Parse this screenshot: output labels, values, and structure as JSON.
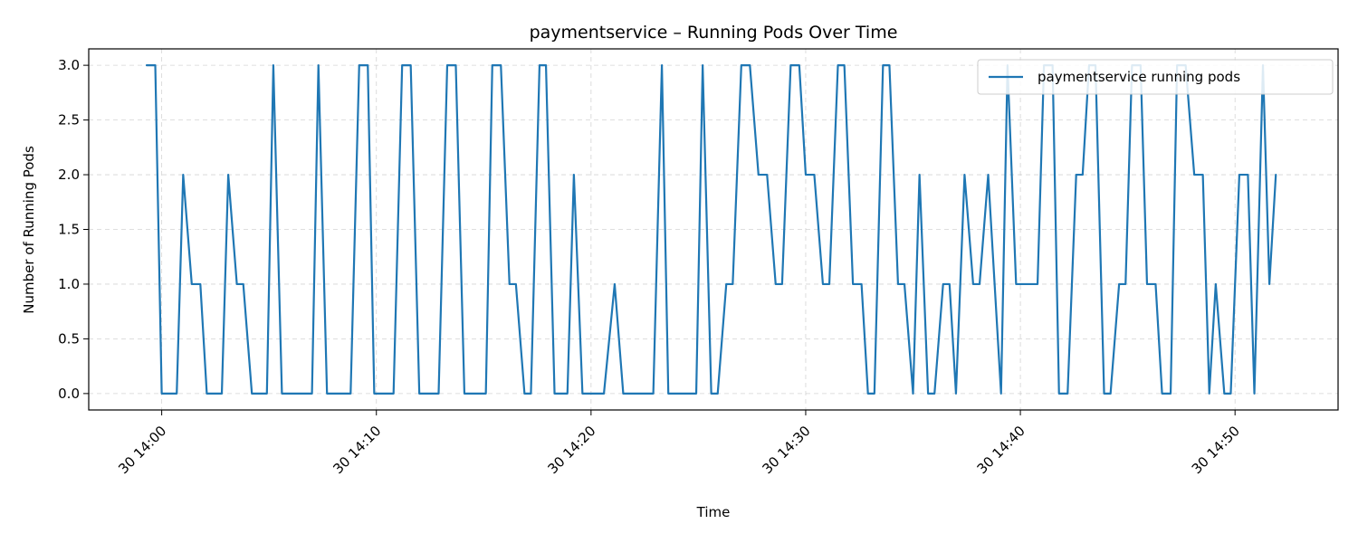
{
  "chart_data": {
    "type": "line",
    "title": "paymentservice – Running Pods Over Time",
    "xlabel": "Time",
    "ylabel": "Number of Running Pods",
    "x_unit": "minutes after 30 14:00",
    "xlim": [
      -3.4,
      54.8
    ],
    "ylim": [
      -0.15,
      3.15
    ],
    "grid": true,
    "legend": "top-right",
    "line_color": "#1f77b4",
    "x_ticks": [
      {
        "value": 0,
        "label": "30 14:00"
      },
      {
        "value": 10,
        "label": "30 14:10"
      },
      {
        "value": 20,
        "label": "30 14:20"
      },
      {
        "value": 30,
        "label": "30 14:30"
      },
      {
        "value": 40,
        "label": "30 14:40"
      },
      {
        "value": 50,
        "label": "30 14:50"
      }
    ],
    "y_ticks": [
      {
        "value": 0.0,
        "label": "0.0"
      },
      {
        "value": 0.5,
        "label": "0.5"
      },
      {
        "value": 1.0,
        "label": "1.0"
      },
      {
        "value": 1.5,
        "label": "1.5"
      },
      {
        "value": 2.0,
        "label": "2.0"
      },
      {
        "value": 2.5,
        "label": "2.5"
      },
      {
        "value": 3.0,
        "label": "3.0"
      }
    ],
    "series": [
      {
        "name": "paymentservice running pods",
        "points": [
          [
            -0.7,
            3
          ],
          [
            -0.3,
            3
          ],
          [
            0.0,
            0
          ],
          [
            0.7,
            0
          ],
          [
            1.0,
            2
          ],
          [
            1.4,
            1
          ],
          [
            1.8,
            1
          ],
          [
            2.1,
            0
          ],
          [
            2.8,
            0
          ],
          [
            3.1,
            2
          ],
          [
            3.5,
            1
          ],
          [
            3.8,
            1
          ],
          [
            4.2,
            0
          ],
          [
            4.9,
            0
          ],
          [
            5.2,
            3
          ],
          [
            5.6,
            0
          ],
          [
            7.0,
            0
          ],
          [
            7.3,
            3
          ],
          [
            7.7,
            0
          ],
          [
            8.8,
            0
          ],
          [
            9.2,
            3
          ],
          [
            9.6,
            3
          ],
          [
            9.9,
            0
          ],
          [
            10.8,
            0
          ],
          [
            11.2,
            3
          ],
          [
            11.6,
            3
          ],
          [
            12.0,
            0
          ],
          [
            12.9,
            0
          ],
          [
            13.3,
            3
          ],
          [
            13.7,
            3
          ],
          [
            14.1,
            0
          ],
          [
            15.1,
            0
          ],
          [
            15.4,
            3
          ],
          [
            15.8,
            3
          ],
          [
            16.2,
            1
          ],
          [
            16.5,
            1
          ],
          [
            16.9,
            0
          ],
          [
            17.2,
            0
          ],
          [
            17.6,
            3
          ],
          [
            17.9,
            3
          ],
          [
            18.3,
            0
          ],
          [
            18.9,
            0
          ],
          [
            19.2,
            2
          ],
          [
            19.6,
            0
          ],
          [
            20.6,
            0
          ],
          [
            21.1,
            1
          ],
          [
            21.5,
            0
          ],
          [
            22.9,
            0
          ],
          [
            23.3,
            3
          ],
          [
            23.6,
            0
          ],
          [
            24.9,
            0
          ],
          [
            25.2,
            3
          ],
          [
            25.6,
            0
          ],
          [
            25.9,
            0
          ],
          [
            26.3,
            1
          ],
          [
            26.6,
            1
          ],
          [
            27.0,
            3
          ],
          [
            27.4,
            3
          ],
          [
            27.8,
            2
          ],
          [
            28.2,
            2
          ],
          [
            28.6,
            1
          ],
          [
            28.9,
            1
          ],
          [
            29.3,
            3
          ],
          [
            29.7,
            3
          ],
          [
            30.0,
            2
          ],
          [
            30.4,
            2
          ],
          [
            30.8,
            1
          ],
          [
            31.1,
            1
          ],
          [
            31.5,
            3
          ],
          [
            31.8,
            3
          ],
          [
            32.2,
            1
          ],
          [
            32.6,
            1
          ],
          [
            32.9,
            0
          ],
          [
            33.2,
            0
          ],
          [
            33.6,
            3
          ],
          [
            33.9,
            3
          ],
          [
            34.3,
            1
          ],
          [
            34.6,
            1
          ],
          [
            35.0,
            0
          ],
          [
            35.3,
            2
          ],
          [
            35.7,
            0
          ],
          [
            36.0,
            0
          ],
          [
            36.4,
            1
          ],
          [
            36.7,
            1
          ],
          [
            37.0,
            0
          ],
          [
            37.4,
            2
          ],
          [
            37.8,
            1
          ],
          [
            38.1,
            1
          ],
          [
            38.5,
            2
          ],
          [
            38.8,
            1
          ],
          [
            39.1,
            0
          ],
          [
            39.4,
            3
          ],
          [
            39.8,
            1
          ],
          [
            40.8,
            1
          ],
          [
            41.1,
            3
          ],
          [
            41.5,
            3
          ],
          [
            41.8,
            0
          ],
          [
            42.2,
            0
          ],
          [
            42.6,
            2
          ],
          [
            42.9,
            2
          ],
          [
            43.2,
            3
          ],
          [
            43.5,
            3
          ],
          [
            43.9,
            0
          ],
          [
            44.2,
            0
          ],
          [
            44.6,
            1
          ],
          [
            44.9,
            1
          ],
          [
            45.2,
            3
          ],
          [
            45.6,
            3
          ],
          [
            45.9,
            1
          ],
          [
            46.3,
            1
          ],
          [
            46.6,
            0
          ],
          [
            47.0,
            0
          ],
          [
            47.3,
            3
          ],
          [
            47.7,
            3
          ],
          [
            48.1,
            2
          ],
          [
            48.5,
            2
          ],
          [
            48.8,
            0
          ],
          [
            49.1,
            1
          ],
          [
            49.5,
            0
          ],
          [
            49.8,
            0
          ],
          [
            50.2,
            2
          ],
          [
            50.6,
            2
          ],
          [
            50.9,
            0
          ],
          [
            51.3,
            3
          ],
          [
            51.6,
            1
          ],
          [
            51.9,
            2
          ]
        ]
      }
    ]
  }
}
